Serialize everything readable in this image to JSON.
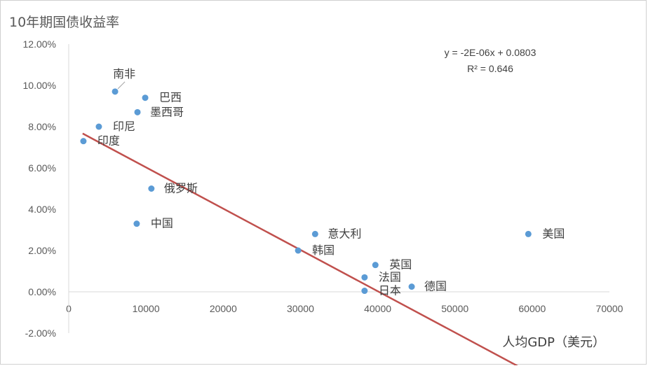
{
  "chart_data": {
    "type": "scatter",
    "title": "10年期国债收益率",
    "xlabel": "人均GDP（美元）",
    "ylabel": "",
    "xlim": [
      0,
      70000
    ],
    "ylim": [
      -0.02,
      0.12
    ],
    "x_ticks": [
      0,
      10000,
      20000,
      30000,
      40000,
      50000,
      60000,
      70000
    ],
    "x_tick_labels": [
      "0",
      "10000",
      "20000",
      "30000",
      "40000",
      "50000",
      "60000",
      "70000"
    ],
    "y_ticks": [
      -0.02,
      0,
      0.02,
      0.04,
      0.06,
      0.08,
      0.1,
      0.12
    ],
    "y_tick_labels": [
      "-2.00%",
      "0.00%",
      "2.00%",
      "4.00%",
      "6.00%",
      "8.00%",
      "10.00%",
      "12.00%"
    ],
    "grid": false,
    "legend": "none",
    "points": [
      {
        "label": "南非",
        "x": 6000,
        "y": 0.097
      },
      {
        "label": "巴西",
        "x": 9900,
        "y": 0.094
      },
      {
        "label": "墨西哥",
        "x": 8900,
        "y": 0.087
      },
      {
        "label": "印尼",
        "x": 3900,
        "y": 0.08
      },
      {
        "label": "印度",
        "x": 1900,
        "y": 0.073
      },
      {
        "label": "俄罗斯",
        "x": 10700,
        "y": 0.05
      },
      {
        "label": "中国",
        "x": 8800,
        "y": 0.033
      },
      {
        "label": "意大利",
        "x": 31900,
        "y": 0.028
      },
      {
        "label": "美国",
        "x": 59500,
        "y": 0.028
      },
      {
        "label": "韩国",
        "x": 29700,
        "y": 0.02
      },
      {
        "label": "英国",
        "x": 39700,
        "y": 0.013
      },
      {
        "label": "法国",
        "x": 38300,
        "y": 0.007
      },
      {
        "label": "德国",
        "x": 44400,
        "y": 0.0025
      },
      {
        "label": "日本",
        "x": 38300,
        "y": 0.0005
      }
    ],
    "trendline": {
      "type": "linear",
      "slope": -2e-06,
      "intercept": 0.0803,
      "x_range": [
        1800,
        59500
      ],
      "equation": "y = -2E-06x + 0.0803",
      "r_squared": "R² = 0.646"
    },
    "colors": {
      "points": "#5b9bd5",
      "trendline": "#c0504d",
      "axis": "#d9d9d9",
      "text": "#595959"
    }
  }
}
